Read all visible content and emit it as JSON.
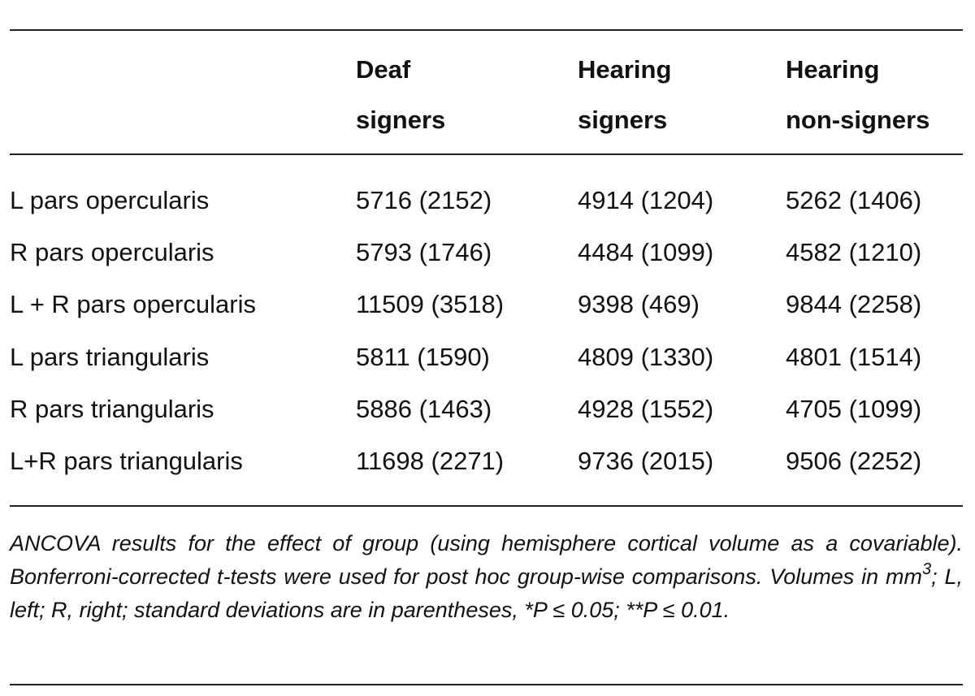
{
  "table": {
    "headers": [
      [
        "Deaf",
        "signers"
      ],
      [
        "Hearing",
        "signers"
      ],
      [
        "Hearing",
        "non-signers"
      ]
    ],
    "rows": [
      [
        "L pars opercularis",
        "5716 (2152)",
        "4914 (1204)",
        "5262 (1406)"
      ],
      [
        "R pars opercularis",
        "5793 (1746)",
        "4484 (1099)",
        "4582 (1210)"
      ],
      [
        "L + R pars opercularis",
        "11509 (3518)",
        "9398 (469)",
        "9844 (2258)"
      ],
      [
        "L pars triangularis",
        "5811 (1590)",
        "4809 (1330)",
        "4801 (1514)"
      ],
      [
        "R pars triangularis",
        "5886 (1463)",
        "4928 (1552)",
        "4705 (1099)"
      ],
      [
        "L+R pars triangularis",
        "11698 (2271)",
        "9736 (2015)",
        "9506 (2252)"
      ]
    ],
    "note": [
      "ANCOVA results for the effect of group (using hemisphere cortical volume as a covariable). Bonferroni-corrected t-tests were used for post hoc group-wise comparisons. Volumes in mm",
      "3",
      "; L, left; R, right; standard deviations are in parentheses, *P ≤ 0.05; **P ≤ 0.01."
    ]
  }
}
